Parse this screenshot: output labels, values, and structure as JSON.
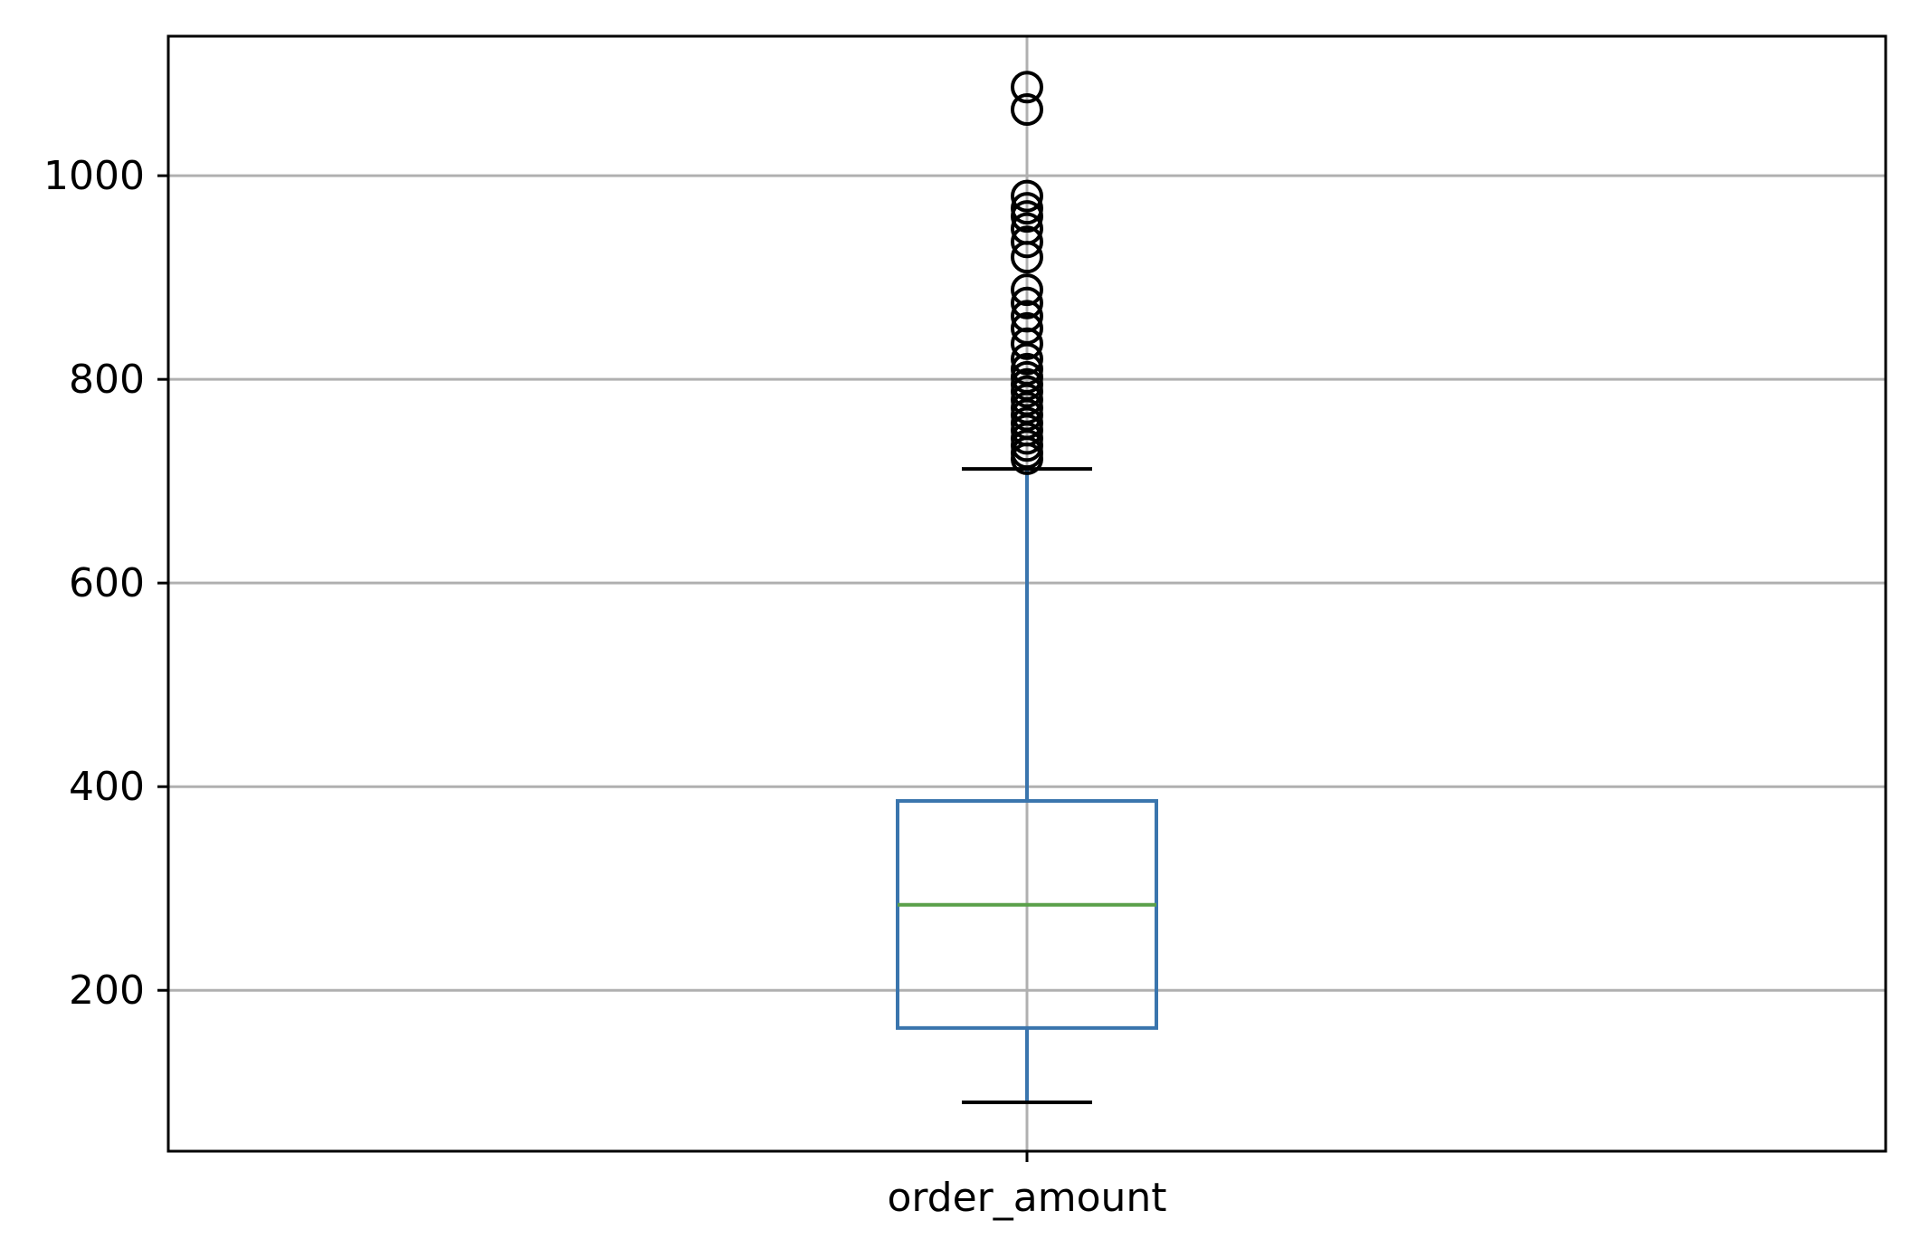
{
  "chart_data": {
    "type": "box",
    "categories": [
      "order_amount"
    ],
    "ylim": [
      42,
      1137
    ],
    "yticks": [
      200,
      400,
      600,
      800,
      1000
    ],
    "ytick_labels": [
      "200",
      "400",
      "600",
      "800",
      "1000"
    ],
    "grid": true,
    "series": [
      {
        "category": "order_amount",
        "whisker_low": 90,
        "q1": 163,
        "median": 284,
        "q3": 386,
        "whisker_high": 712,
        "outliers": [
          722,
          728,
          735,
          742,
          750,
          757,
          765,
          772,
          780,
          788,
          795,
          802,
          810,
          820,
          835,
          850,
          862,
          875,
          888,
          920,
          935,
          948,
          960,
          968,
          980,
          1065,
          1087
        ]
      }
    ],
    "colors": {
      "box": "#3a75ad",
      "median": "#5aa04a",
      "whisker_cap": "#000000",
      "flier": "#000000",
      "grid": "#b0b0b0",
      "frame": "#000000"
    }
  }
}
